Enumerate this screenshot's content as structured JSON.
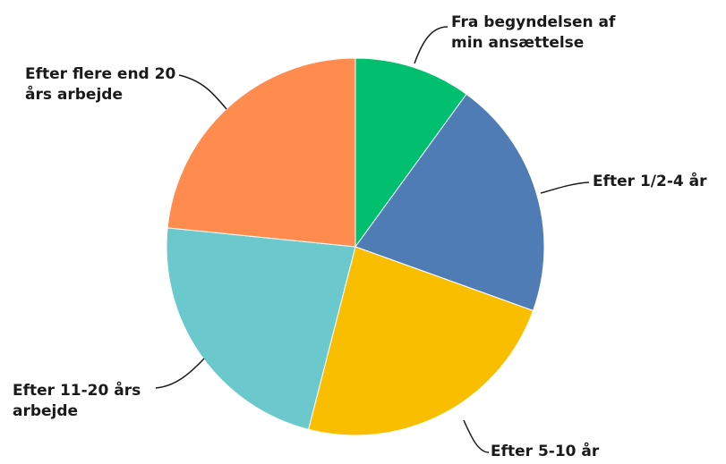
{
  "chart_data": {
    "type": "pie",
    "slices": [
      {
        "label": "Fra begyndelsen af\nmin ansættelse",
        "value": 10.0,
        "color": "#00BF6F"
      },
      {
        "label": "Efter 1/2-4 år",
        "value": 20.5,
        "color": "#507CB6"
      },
      {
        "label": "Efter 5-10 år",
        "value": 23.5,
        "color": "#F9BE00"
      },
      {
        "label": "Efter 11-20 års\narbejde",
        "value": 22.6,
        "color": "#6BC8CD"
      },
      {
        "label": "Efter flere end 20\nårs arbejde",
        "value": 23.4,
        "color": "#FF8B4F"
      }
    ]
  }
}
